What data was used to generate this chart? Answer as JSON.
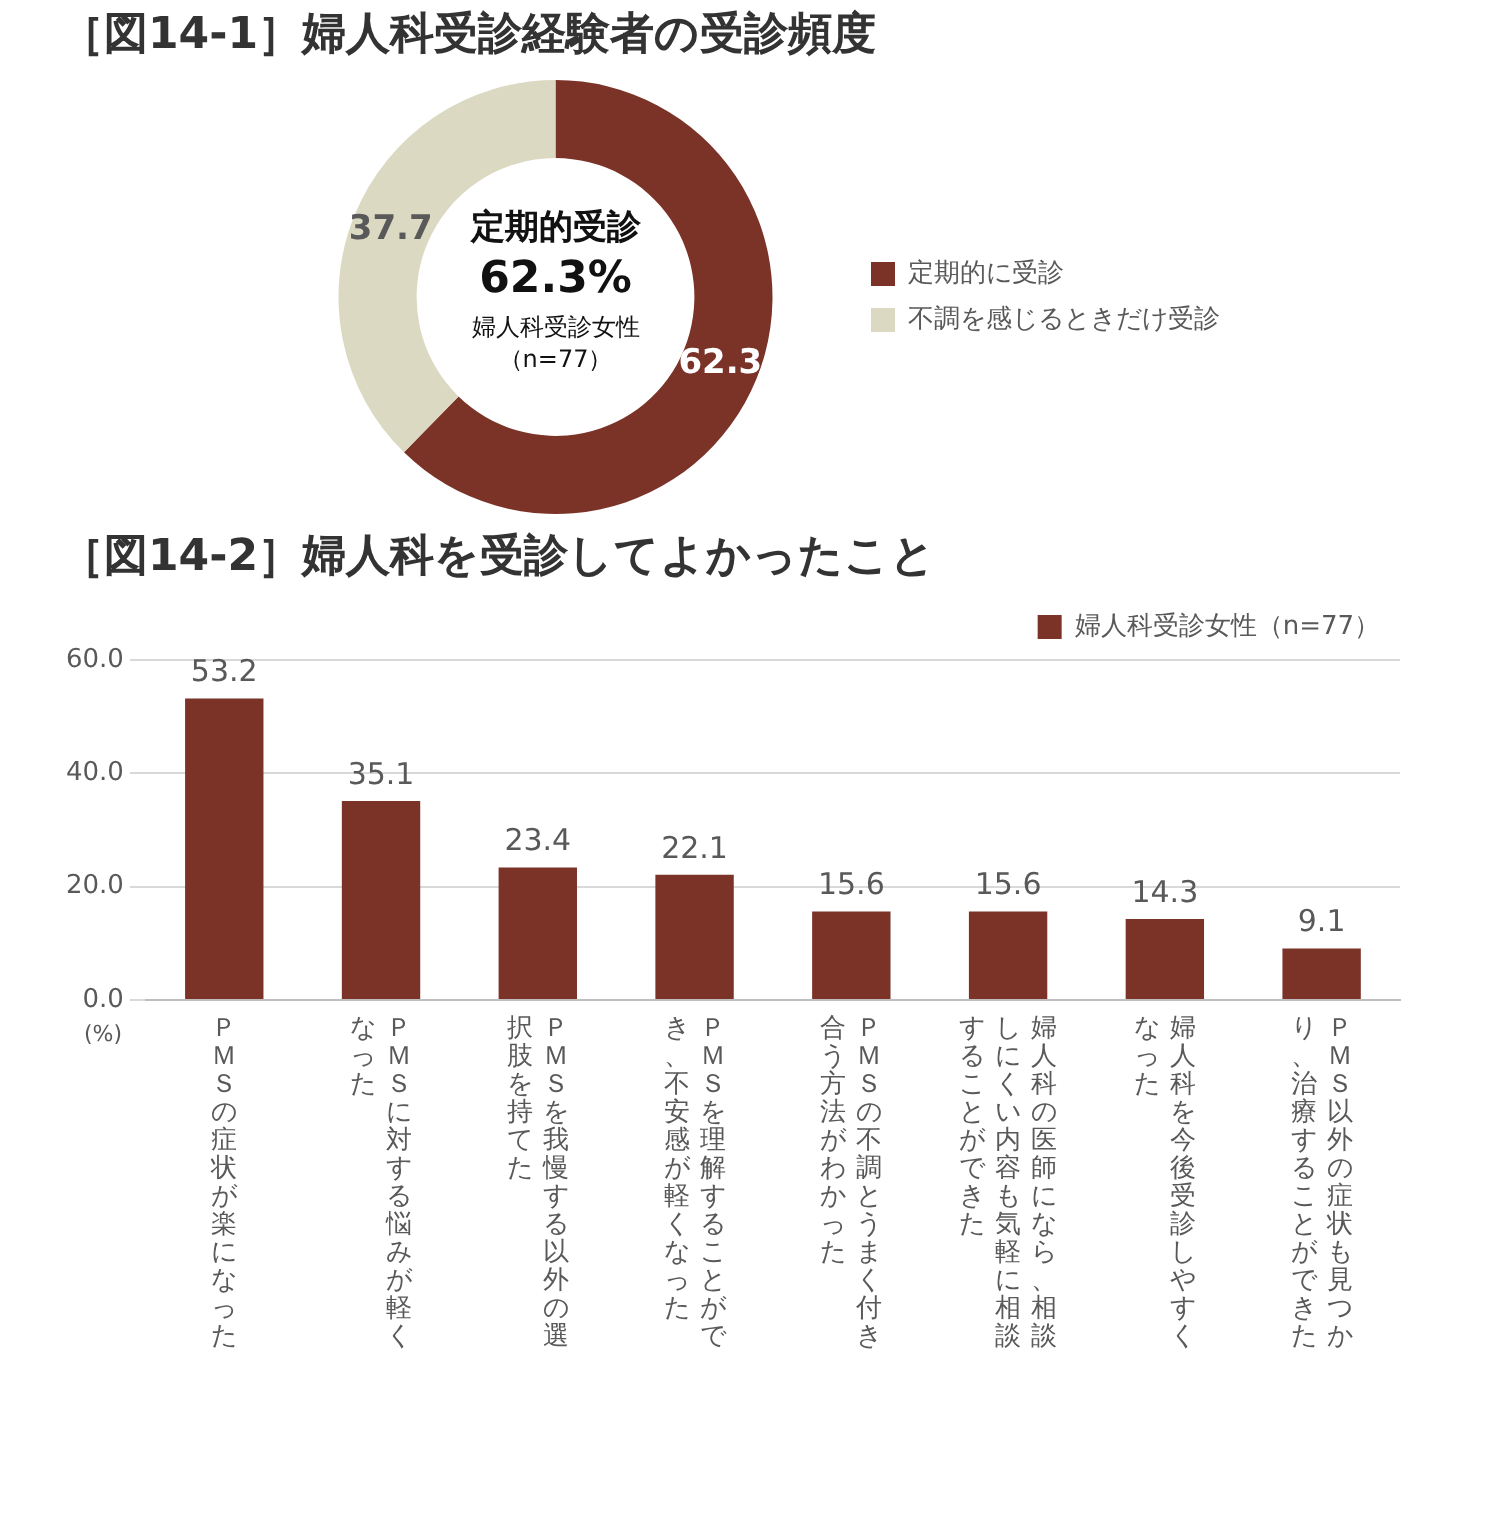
{
  "chart_data": [
    {
      "type": "donut",
      "title": "［図14-1］婦人科受診経験者の受診頻度",
      "categories": [
        "定期的に受診",
        "不調を感じるときだけ受診"
      ],
      "values": [
        62.3,
        37.7
      ],
      "colors": [
        "#7b3328",
        "#dcd9c2"
      ],
      "data_labels": true,
      "legend": "right",
      "annotations": [
        "定期的受診",
        "62.3%",
        "婦人科受診女性",
        "（n=77）"
      ]
    },
    {
      "type": "bar",
      "title": "［図14-2］婦人科を受診してよかったこと",
      "ylabel": "(%)",
      "categories": [
        "ＰＭＳの症状が楽になった",
        "ＰＭＳに対する悩みが軽くなった",
        "ＰＭＳを我慢する以外の選択肢を持てた",
        "ＰＭＳを理解することができ、不安感が軽くなった",
        "ＰＭＳの不調とうまく付き合う方法がわかった",
        "婦人科の医師になら、相談しにくい内容も気軽に相談することができた",
        "婦人科を今後受診しやすくなった",
        "ＰＭＳ以外の症状も見つかり、治療することができた"
      ],
      "series": [
        {
          "name": "婦人科受診女性（n=77）",
          "color": "#7b3328",
          "values": [
            53.2,
            35.1,
            23.4,
            22.1,
            15.6,
            15.6,
            14.3,
            9.1
          ]
        }
      ],
      "ylim": [
        0,
        60
      ],
      "yticks": [
        {
          "value": 0,
          "label": "0.0"
        },
        {
          "value": 20,
          "label": "20.0"
        },
        {
          "value": 40,
          "label": "40.0"
        },
        {
          "value": 60,
          "label": "60.0"
        }
      ],
      "grid": "y",
      "legend": "top right",
      "data_labels": true
    }
  ]
}
